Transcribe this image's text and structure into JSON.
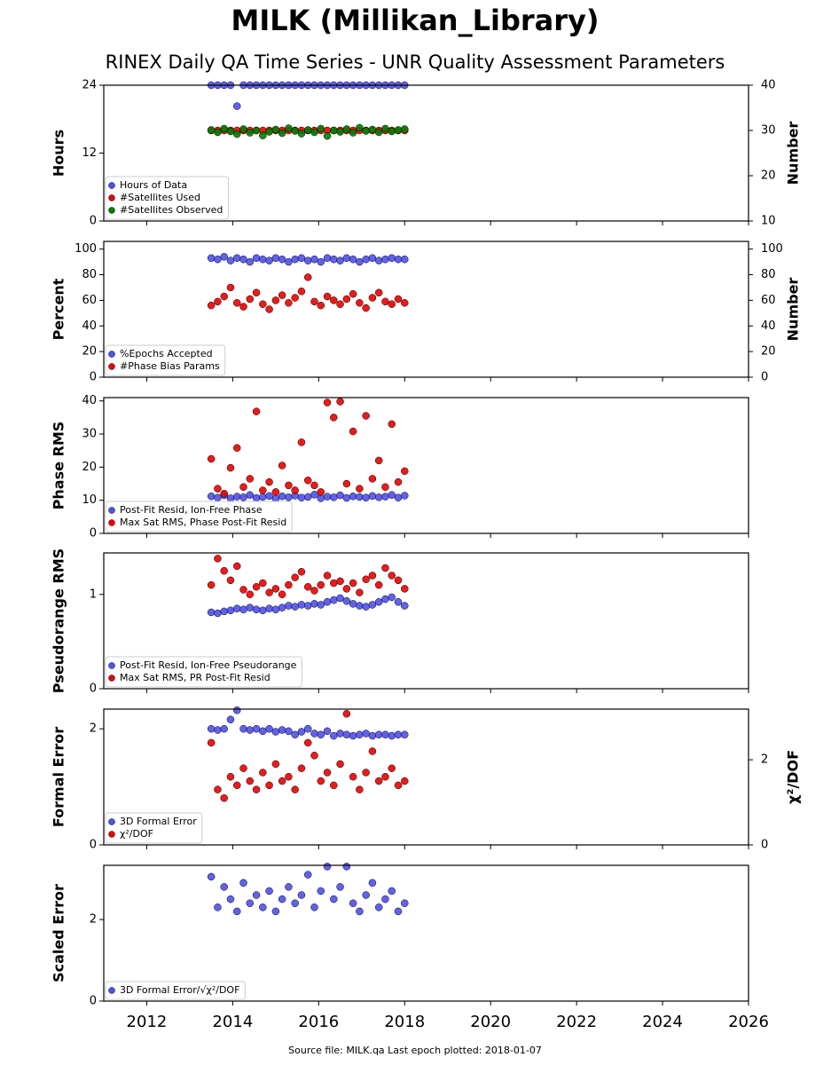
{
  "title": "MILK (Millikan_Library)",
  "subtitle": "RINEX Daily QA Time Series - UNR Quality Assessment Parameters",
  "footer": "Source file: MILK.qa Last epoch plotted: 2018-01-07",
  "chart_data": [
    {
      "type": "scatter",
      "ylabel": "Hours",
      "y2label": "Number",
      "ylim": [
        0,
        24
      ],
      "yticks": [
        0,
        12,
        24
      ],
      "y2lim": [
        10,
        40
      ],
      "y2ticks": [
        10,
        20,
        30,
        40
      ],
      "legend": "lower left",
      "x": [
        2013.5,
        2013.65,
        2013.8,
        2013.95,
        2014.1,
        2014.25,
        2014.4,
        2014.55,
        2014.7,
        2014.85,
        2015.0,
        2015.15,
        2015.3,
        2015.45,
        2015.6,
        2015.75,
        2015.9,
        2016.05,
        2016.2,
        2016.35,
        2016.5,
        2016.65,
        2016.8,
        2016.95,
        2017.1,
        2017.25,
        2017.4,
        2017.55,
        2017.7,
        2017.85,
        2018.0
      ],
      "series": [
        {
          "name": "Hours of Data",
          "color": "#5050ee",
          "values": [
            24,
            24,
            24,
            24,
            20.3,
            24,
            24,
            24,
            24,
            24,
            24,
            24,
            24,
            24,
            24,
            24,
            24,
            24,
            24,
            24,
            24,
            24,
            24,
            24,
            24,
            24,
            24,
            24,
            24,
            24,
            24
          ]
        },
        {
          "name": "#Satellites Used",
          "color": "#ee0000",
          "axis": "y2",
          "values": [
            30,
            30,
            30,
            30,
            30,
            30,
            30,
            30,
            30,
            30,
            30,
            30,
            30,
            30,
            30,
            30,
            30,
            30,
            30,
            30,
            30,
            30,
            30,
            30,
            30,
            30,
            30,
            30,
            30,
            30,
            30
          ]
        },
        {
          "name": "#Satellites Observed",
          "color": "#008000",
          "axis": "y2",
          "values": [
            30.1,
            29.6,
            30.4,
            29.8,
            29.2,
            30.3,
            29.5,
            30.0,
            28.9,
            29.7,
            30.2,
            29.4,
            30.5,
            29.9,
            29.3,
            30.1,
            29.6,
            30.4,
            28.8,
            30.0,
            29.7,
            30.3,
            29.5,
            30.6,
            29.9,
            30.2,
            29.6,
            30.4,
            29.8,
            30.1,
            30.3
          ]
        }
      ]
    },
    {
      "type": "scatter",
      "ylabel": "Percent",
      "y2label": "Number",
      "ylim": [
        0,
        106
      ],
      "yticks": [
        0,
        20,
        40,
        60,
        80,
        100
      ],
      "y2lim": [
        0,
        106
      ],
      "y2ticks": [
        0,
        20,
        40,
        60,
        80,
        100
      ],
      "legend": "lower left",
      "x": [
        2013.5,
        2013.65,
        2013.8,
        2013.95,
        2014.1,
        2014.25,
        2014.4,
        2014.55,
        2014.7,
        2014.85,
        2015.0,
        2015.15,
        2015.3,
        2015.45,
        2015.6,
        2015.75,
        2015.9,
        2016.05,
        2016.2,
        2016.35,
        2016.5,
        2016.65,
        2016.8,
        2016.95,
        2017.1,
        2017.25,
        2017.4,
        2017.55,
        2017.7,
        2017.85,
        2018.0
      ],
      "series": [
        {
          "name": "%Epochs Accepted",
          "color": "#5050ee",
          "values": [
            93,
            92,
            94,
            91,
            93,
            92,
            90,
            93,
            92,
            91,
            93,
            92,
            90,
            92,
            93,
            91,
            92,
            90,
            93,
            92,
            91,
            93,
            92,
            90,
            92,
            93,
            91,
            92,
            93,
            92,
            92
          ]
        },
        {
          "name": "#Phase Bias Params",
          "color": "#ee0000",
          "axis": "y2",
          "values": [
            56,
            59,
            63,
            70,
            58,
            55,
            61,
            66,
            57,
            53,
            60,
            64,
            58,
            62,
            67,
            78,
            59,
            56,
            63,
            60,
            57,
            61,
            65,
            58,
            54,
            62,
            66,
            59,
            57,
            61,
            58
          ]
        }
      ]
    },
    {
      "type": "scatter",
      "ylabel": "Phase RMS",
      "ylim": [
        0,
        41
      ],
      "yticks": [
        0,
        10,
        20,
        30,
        40
      ],
      "legend": "lower left",
      "x": [
        2013.5,
        2013.65,
        2013.8,
        2013.95,
        2014.1,
        2014.25,
        2014.4,
        2014.55,
        2014.7,
        2014.85,
        2015.0,
        2015.15,
        2015.3,
        2015.45,
        2015.6,
        2015.75,
        2015.9,
        2016.05,
        2016.2,
        2016.35,
        2016.5,
        2016.65,
        2016.8,
        2016.95,
        2017.1,
        2017.25,
        2017.4,
        2017.55,
        2017.7,
        2017.85,
        2018.0
      ],
      "series": [
        {
          "name": "Post-Fit Resid, Ion-Free Phase",
          "color": "#5050ee",
          "values": [
            11.2,
            10.8,
            11.5,
            10.6,
            11.1,
            10.9,
            11.6,
            10.7,
            11.0,
            11.3,
            10.5,
            11.2,
            10.9,
            11.4,
            10.8,
            11.0,
            11.7,
            10.6,
            11.1,
            10.9,
            11.5,
            10.7,
            11.2,
            11.0,
            10.8,
            11.3,
            10.9,
            11.1,
            11.6,
            10.8,
            11.4
          ]
        },
        {
          "name": "Max Sat RMS, Phase Post-Fit Resid",
          "color": "#ee0000",
          "values": [
            22.5,
            13.5,
            12.0,
            19.8,
            25.8,
            14.0,
            16.5,
            36.8,
            13.0,
            15.5,
            12.5,
            20.5,
            14.5,
            13.0,
            27.5,
            16.0,
            14.5,
            12.5,
            39.5,
            35.0,
            39.8,
            15.0,
            30.8,
            13.5,
            35.5,
            16.5,
            22.0,
            14.0,
            33.0,
            15.5,
            18.8
          ]
        }
      ]
    },
    {
      "type": "scatter",
      "ylabel": "Pseudorange RMS",
      "ylim": [
        0,
        1.44
      ],
      "yticks": [
        0,
        1
      ],
      "legend": "lower left",
      "x": [
        2013.5,
        2013.65,
        2013.8,
        2013.95,
        2014.1,
        2014.25,
        2014.4,
        2014.55,
        2014.7,
        2014.85,
        2015.0,
        2015.15,
        2015.3,
        2015.45,
        2015.6,
        2015.75,
        2015.9,
        2016.05,
        2016.2,
        2016.35,
        2016.5,
        2016.65,
        2016.8,
        2016.95,
        2017.1,
        2017.25,
        2017.4,
        2017.55,
        2017.7,
        2017.85,
        2018.0
      ],
      "series": [
        {
          "name": "Post-Fit Resid, Ion-Free Pseudorange",
          "color": "#5050ee",
          "values": [
            0.81,
            0.8,
            0.82,
            0.83,
            0.85,
            0.84,
            0.86,
            0.84,
            0.83,
            0.85,
            0.84,
            0.86,
            0.88,
            0.87,
            0.89,
            0.88,
            0.9,
            0.89,
            0.92,
            0.94,
            0.96,
            0.93,
            0.9,
            0.88,
            0.87,
            0.89,
            0.92,
            0.95,
            0.97,
            0.92,
            0.88
          ]
        },
        {
          "name": "Max Sat RMS, PR Post-Fit Resid",
          "color": "#ee0000",
          "values": [
            1.1,
            1.38,
            1.25,
            1.15,
            1.3,
            1.05,
            1.0,
            1.08,
            1.12,
            1.02,
            1.06,
            1.0,
            1.1,
            1.18,
            1.24,
            1.08,
            1.04,
            1.1,
            1.2,
            1.12,
            1.14,
            1.06,
            1.12,
            1.02,
            1.16,
            1.2,
            1.1,
            1.28,
            1.2,
            1.15,
            1.06
          ]
        }
      ]
    },
    {
      "type": "scatter",
      "ylabel": "Formal Error",
      "y2label": "χ²/DOF",
      "ylim": [
        0,
        2.34
      ],
      "yticks": [
        0,
        2
      ],
      "y2lim": [
        0,
        3.19
      ],
      "y2ticks": [
        0,
        2
      ],
      "legend": "lower left",
      "x": [
        2013.5,
        2013.65,
        2013.8,
        2013.95,
        2014.1,
        2014.25,
        2014.4,
        2014.55,
        2014.7,
        2014.85,
        2015.0,
        2015.15,
        2015.3,
        2015.45,
        2015.6,
        2015.75,
        2015.9,
        2016.05,
        2016.2,
        2016.35,
        2016.5,
        2016.65,
        2016.8,
        2016.95,
        2017.1,
        2017.25,
        2017.4,
        2017.55,
        2017.7,
        2017.85,
        2018.0
      ],
      "series": [
        {
          "name": "3D Formal Error",
          "color": "#5050ee",
          "values": [
            2.0,
            1.98,
            2.0,
            2.16,
            2.32,
            2.0,
            1.98,
            2.0,
            1.96,
            2.0,
            1.95,
            1.98,
            1.96,
            1.9,
            1.95,
            2.0,
            1.92,
            1.9,
            1.96,
            1.88,
            1.92,
            1.9,
            1.88,
            1.9,
            1.92,
            1.88,
            1.9,
            1.9,
            1.88,
            1.9,
            1.9
          ]
        },
        {
          "name": "χ²/DOF",
          "color": "#ee0000",
          "axis": "y2",
          "values": [
            2.4,
            1.3,
            1.1,
            1.6,
            1.4,
            1.8,
            1.5,
            1.3,
            1.7,
            1.4,
            1.9,
            1.5,
            1.6,
            1.3,
            1.8,
            2.4,
            2.1,
            1.5,
            1.7,
            1.4,
            1.9,
            3.08,
            1.6,
            1.3,
            1.7,
            2.2,
            1.5,
            1.6,
            1.8,
            1.4,
            1.5
          ]
        }
      ]
    },
    {
      "type": "scatter",
      "ylabel": "Scaled Error",
      "ylim": [
        0,
        3.33
      ],
      "yticks": [
        0,
        2
      ],
      "legend": "lower left",
      "xlim": [
        2011,
        2026
      ],
      "xticks": [
        2012,
        2014,
        2016,
        2018,
        2020,
        2022,
        2024,
        2026
      ],
      "x": [
        2013.5,
        2013.65,
        2013.8,
        2013.95,
        2014.1,
        2014.25,
        2014.4,
        2014.55,
        2014.7,
        2014.85,
        2015.0,
        2015.15,
        2015.3,
        2015.45,
        2015.6,
        2015.75,
        2015.9,
        2016.05,
        2016.2,
        2016.35,
        2016.5,
        2016.65,
        2016.8,
        2016.95,
        2017.1,
        2017.25,
        2017.4,
        2017.55,
        2017.7,
        2017.85,
        2018.0
      ],
      "series": [
        {
          "name": "3D Formal Error/√χ²/DOF",
          "color": "#5050ee",
          "values": [
            3.05,
            2.3,
            2.8,
            2.5,
            2.2,
            2.9,
            2.4,
            2.6,
            2.3,
            2.7,
            2.2,
            2.5,
            2.8,
            2.4,
            2.6,
            3.1,
            2.3,
            2.7,
            3.3,
            2.5,
            2.8,
            3.3,
            2.4,
            2.2,
            2.6,
            2.9,
            2.3,
            2.5,
            2.7,
            2.2,
            2.4
          ]
        }
      ]
    }
  ]
}
